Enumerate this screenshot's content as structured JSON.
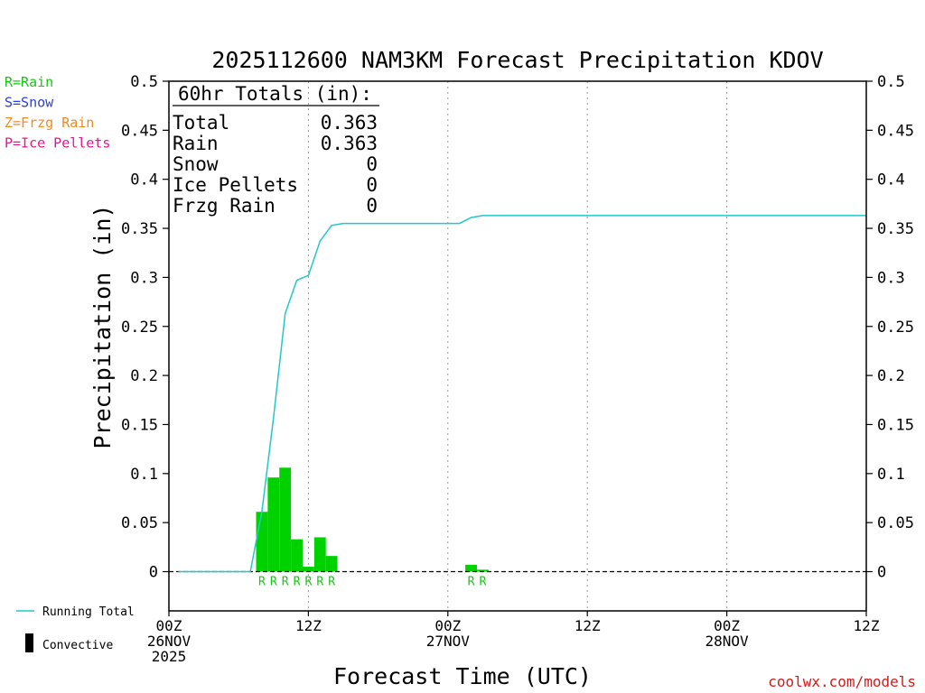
{
  "chart_data": {
    "type": "bar",
    "title": "2025112600 NAM3KM Forecast Precipitation KDOV",
    "xlabel": "Forecast Time (UTC)",
    "ylabel": "Precipitation (in)",
    "ylim": [
      -0.04,
      0.5
    ],
    "xlim_hours": [
      0,
      60
    ],
    "y_ticks": [
      "0",
      "0.05",
      "0.1",
      "0.15",
      "0.2",
      "0.25",
      "0.3",
      "0.35",
      "0.4",
      "0.45",
      "0.5"
    ],
    "x_ticks": [
      {
        "hour": 0,
        "lines": [
          "00Z",
          "26NOV",
          "2025"
        ]
      },
      {
        "hour": 12,
        "lines": [
          "12Z"
        ]
      },
      {
        "hour": 24,
        "lines": [
          "00Z",
          "27NOV"
        ]
      },
      {
        "hour": 36,
        "lines": [
          "12Z"
        ]
      },
      {
        "hour": 48,
        "lines": [
          "00Z",
          "28NOV"
        ]
      },
      {
        "hour": 60,
        "lines": [
          "12Z"
        ]
      }
    ],
    "series": [
      {
        "name": "Hourly precipitation (Rain)",
        "color": "#00d200",
        "bars": [
          {
            "hour": 8,
            "value": 0.061,
            "type": "R"
          },
          {
            "hour": 9,
            "value": 0.096,
            "type": "R"
          },
          {
            "hour": 10,
            "value": 0.106,
            "type": "R"
          },
          {
            "hour": 11,
            "value": 0.033,
            "type": "R"
          },
          {
            "hour": 12,
            "value": 0.005,
            "type": "R"
          },
          {
            "hour": 13,
            "value": 0.035,
            "type": "R"
          },
          {
            "hour": 14,
            "value": 0.016,
            "type": "R"
          },
          {
            "hour": 26,
            "value": 0.007,
            "type": "R"
          },
          {
            "hour": 27,
            "value": 0.002,
            "type": "R"
          }
        ]
      },
      {
        "name": "Running Total",
        "color": "#22c8c8",
        "points": [
          [
            0.8,
            0
          ],
          [
            7,
            0
          ],
          [
            8,
            0.061
          ],
          [
            9,
            0.157
          ],
          [
            10,
            0.263
          ],
          [
            11,
            0.297
          ],
          [
            12,
            0.302
          ],
          [
            13,
            0.337
          ],
          [
            14,
            0.353
          ],
          [
            15,
            0.355
          ],
          [
            25,
            0.355
          ],
          [
            26,
            0.361
          ],
          [
            27,
            0.363
          ],
          [
            60,
            0.363
          ]
        ]
      }
    ],
    "legend": [
      {
        "label": "R=Rain",
        "color": "#14c814"
      },
      {
        "label": "S=Snow",
        "color": "#2b3fd4"
      },
      {
        "label": "Z=Frzg Rain",
        "color": "#f08a24"
      },
      {
        "label": "P=Ice Pellets",
        "color": "#e01890"
      }
    ],
    "bottom_legend": {
      "running_total": "Running Total",
      "convective": "Convective"
    },
    "totals": {
      "header": "60hr Totals (in):",
      "rows": [
        {
          "label": "Total",
          "value": "0.363"
        },
        {
          "label": "Rain",
          "value": "0.363"
        },
        {
          "label": "Snow",
          "value": "0"
        },
        {
          "label": "Ice Pellets",
          "value": "0"
        },
        {
          "label": "Frzg Rain",
          "value": "0"
        }
      ]
    },
    "credit": "coolwx.com/models",
    "bar_color": "#00d200",
    "line_color": "#22c8c8"
  }
}
